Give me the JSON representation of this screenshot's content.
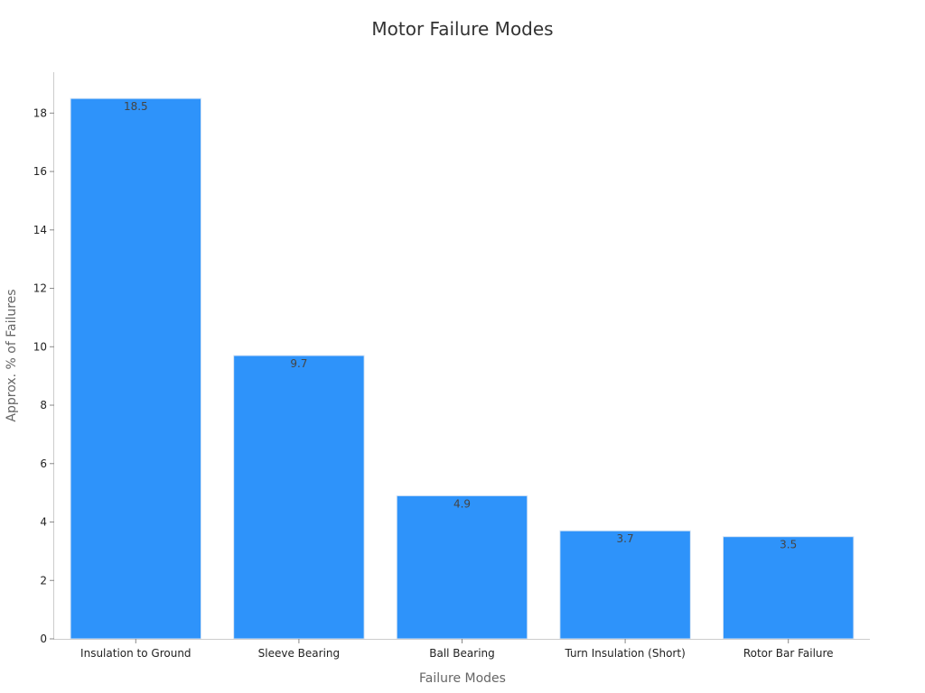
{
  "chart_data": {
    "type": "bar",
    "title": "Motor Failure Modes",
    "xlabel": "Failure Modes",
    "ylabel": "Approx. % of Failures",
    "categories": [
      "Insulation to Ground",
      "Sleeve Bearing",
      "Ball Bearing",
      "Turn Insulation (Short)",
      "Rotor Bar Failure"
    ],
    "values": [
      18.5,
      9.7,
      4.9,
      3.7,
      3.5
    ],
    "ylim": [
      0,
      19.4
    ],
    "yticks": [
      0,
      2,
      4,
      6,
      8,
      10,
      12,
      14,
      16,
      18
    ],
    "bar_color": "#2e93fa",
    "grid": false,
    "legend": "none"
  }
}
